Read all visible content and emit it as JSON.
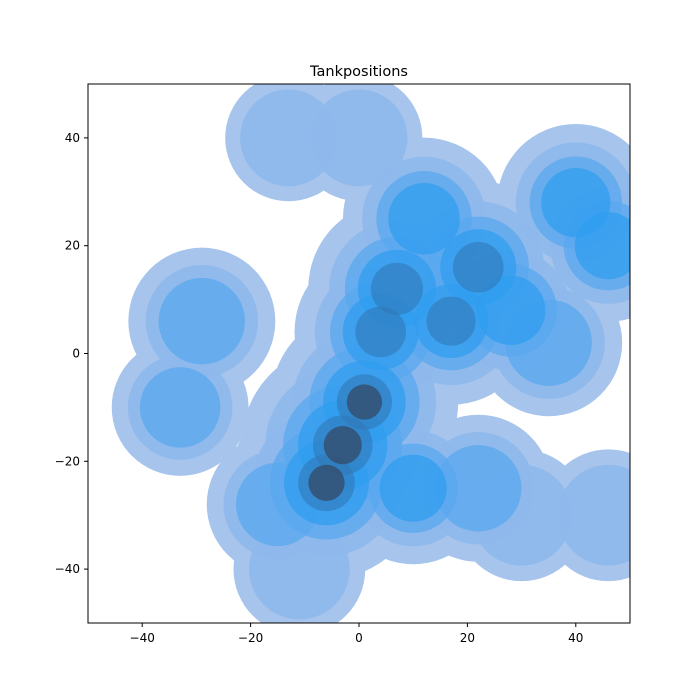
{
  "chart_data": {
    "type": "heatmap",
    "subtype": "filled-kde-contour",
    "title": "Tankpositions",
    "xlabel": "",
    "ylabel": "",
    "xlim": [
      -50,
      50
    ],
    "ylim": [
      -50,
      50
    ],
    "x_ticks": [
      -40,
      -20,
      0,
      20,
      40
    ],
    "y_ticks": [
      -40,
      -20,
      0,
      20,
      40
    ],
    "grid": false,
    "legend": "none",
    "colors": {
      "low": "#a6c4ec",
      "mid": "#2d9cf0",
      "high": "#344a65"
    },
    "density_points": [
      {
        "x": -3,
        "y": -17,
        "w": 1.0
      },
      {
        "x": -6,
        "y": -24,
        "w": 0.9
      },
      {
        "x": 1,
        "y": -9,
        "w": 0.85
      },
      {
        "x": 4,
        "y": 4,
        "w": 0.7
      },
      {
        "x": 7,
        "y": 12,
        "w": 0.75
      },
      {
        "x": 12,
        "y": 25,
        "w": 0.6
      },
      {
        "x": 17,
        "y": 6,
        "w": 0.65
      },
      {
        "x": 22,
        "y": 16,
        "w": 0.7
      },
      {
        "x": 28,
        "y": 8,
        "w": 0.55
      },
      {
        "x": 40,
        "y": 28,
        "w": 0.55
      },
      {
        "x": 46,
        "y": 20,
        "w": 0.5
      },
      {
        "x": 35,
        "y": 2,
        "w": 0.45
      },
      {
        "x": -29,
        "y": 6,
        "w": 0.45
      },
      {
        "x": -33,
        "y": -10,
        "w": 0.35
      },
      {
        "x": -15,
        "y": -28,
        "w": 0.4
      },
      {
        "x": 10,
        "y": -25,
        "w": 0.5
      },
      {
        "x": 22,
        "y": -25,
        "w": 0.45
      },
      {
        "x": 30,
        "y": -30,
        "w": 0.3
      },
      {
        "x": 46,
        "y": -30,
        "w": 0.3
      },
      {
        "x": -11,
        "y": -40,
        "w": 0.3
      },
      {
        "x": -13,
        "y": 40,
        "w": 0.25
      },
      {
        "x": 0,
        "y": 40,
        "w": 0.25
      }
    ]
  }
}
